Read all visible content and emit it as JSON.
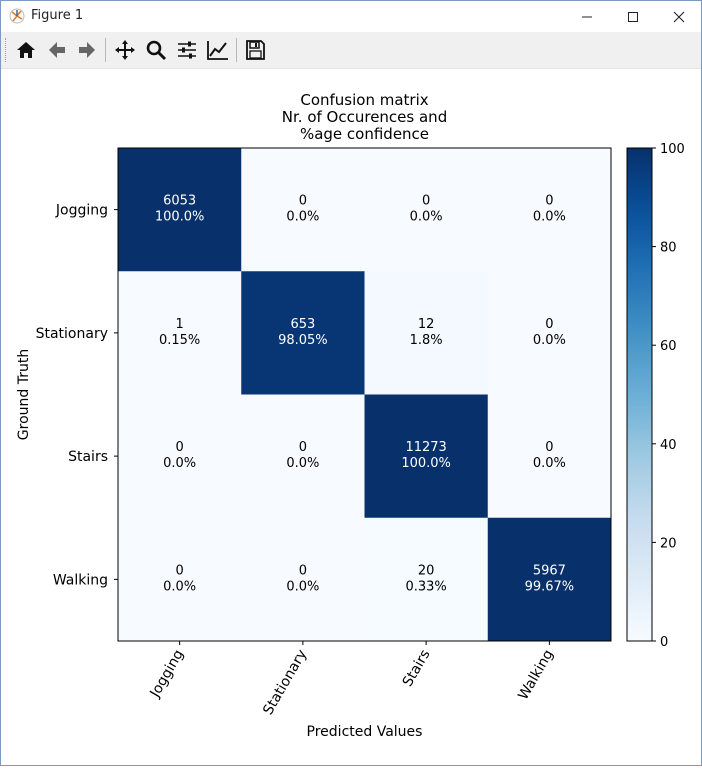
{
  "window": {
    "title": "Figure 1"
  },
  "toolbar": {
    "buttons": [
      {
        "name": "home-icon",
        "tooltip": "Home"
      },
      {
        "name": "back-arrow-icon",
        "tooltip": "Back"
      },
      {
        "name": "forward-arrow-icon",
        "tooltip": "Forward"
      },
      {
        "name": "pan-icon",
        "tooltip": "Pan"
      },
      {
        "name": "zoom-icon",
        "tooltip": "Zoom"
      },
      {
        "name": "configure-subplots-icon",
        "tooltip": "Subplots"
      },
      {
        "name": "edit-axis-icon",
        "tooltip": "Customize"
      },
      {
        "name": "save-icon",
        "tooltip": "Save"
      }
    ]
  },
  "chart_data": {
    "type": "heatmap",
    "title": "Confusion matrix\nNr. of Occurences and\n%age confidence",
    "title_lines": [
      "Confusion matrix",
      "Nr. of Occurences and",
      "%age confidence"
    ],
    "xlabel": "Predicted Values",
    "ylabel": "Ground Truth",
    "x_categories": [
      "Jogging",
      "Stationary",
      "Stairs",
      "Walking"
    ],
    "y_categories": [
      "Jogging",
      "Stationary",
      "Stairs",
      "Walking"
    ],
    "counts": [
      [
        6053,
        0,
        0,
        0
      ],
      [
        1,
        653,
        12,
        0
      ],
      [
        0,
        0,
        11273,
        0
      ],
      [
        0,
        0,
        20,
        5967
      ]
    ],
    "percent_labels": [
      [
        "100.0%",
        "0.0%",
        "0.0%",
        "0.0%"
      ],
      [
        "0.15%",
        "98.05%",
        "1.8%",
        "0.0%"
      ],
      [
        "0.0%",
        "0.0%",
        "100.0%",
        "0.0%"
      ],
      [
        "0.0%",
        "0.0%",
        "0.33%",
        "99.67%"
      ]
    ],
    "percent_values": [
      [
        100.0,
        0.0,
        0.0,
        0.0
      ],
      [
        0.15,
        98.05,
        1.8,
        0.0
      ],
      [
        0.0,
        0.0,
        100.0,
        0.0
      ],
      [
        0.0,
        0.0,
        0.33,
        99.67
      ]
    ],
    "colorbar": {
      "min": 0,
      "max": 100,
      "ticks": [
        0,
        20,
        40,
        60,
        80,
        100
      ],
      "colormap": "Blues"
    },
    "x_tick_rotation": "60 degrees",
    "grid": false
  },
  "colors": {
    "text_on_dark": "#ffffff",
    "text_on_light": "#000000",
    "toolbar_bg": "#f0f0f0"
  }
}
